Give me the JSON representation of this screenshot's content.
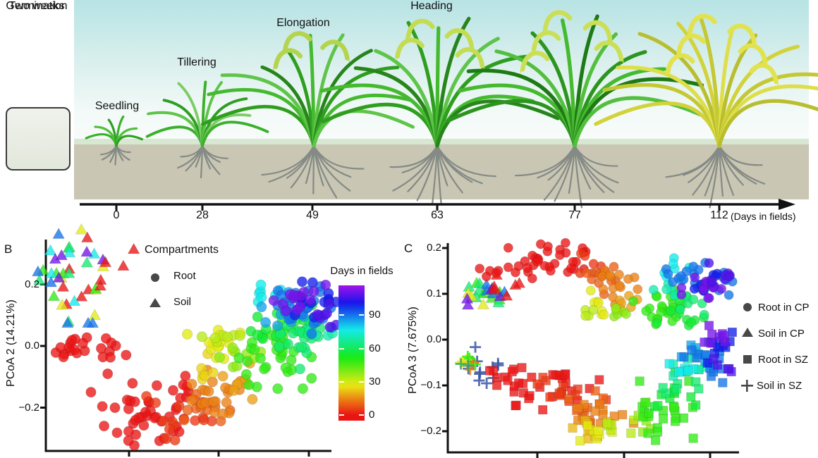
{
  "figure": {
    "panelA": {
      "germination": {
        "label": "Germination",
        "duration": "Two weeks"
      },
      "stages": [
        {
          "label": "Seedling",
          "day": "0"
        },
        {
          "label": "Tillering",
          "day": "28"
        },
        {
          "label": "Elongation",
          "day": "49"
        },
        {
          "label": "Heading",
          "day": "63"
        },
        {
          "label": "",
          "day": "77"
        },
        {
          "label": "",
          "day": "112"
        }
      ],
      "timeline_suffix": "(Days in fields)"
    }
  },
  "chart_data": [
    {
      "panel": "B",
      "type": "scatter",
      "ylabel": "PCoA 2 (14.21%)",
      "yticks": [
        0.2,
        0.0,
        -0.2
      ],
      "grid": false,
      "legend": {
        "title": "Compartments",
        "items": [
          {
            "symbol": "circle",
            "label": "Root"
          },
          {
            "symbol": "triangle",
            "label": "Soil"
          }
        ]
      },
      "colorbar": {
        "title": "Days in fields",
        "ticks": [
          0,
          30,
          60,
          90
        ],
        "range": [
          0,
          112
        ]
      },
      "cluster_format": [
        "shape",
        "day",
        "cx_px",
        "cy_px",
        "sx_px",
        "sy_px",
        "n"
      ],
      "clusters": [
        [
          "triangle",
          0,
          103,
          390,
          24,
          34,
          7
        ],
        [
          "triangle",
          28,
          100,
          385,
          22,
          30,
          6
        ],
        [
          "triangle",
          49,
          106,
          398,
          24,
          32,
          6
        ],
        [
          "triangle",
          63,
          102,
          395,
          22,
          30,
          5
        ],
        [
          "triangle",
          77,
          108,
          388,
          24,
          30,
          5
        ],
        [
          "triangle",
          90,
          100,
          392,
          22,
          32,
          6
        ],
        [
          "triangle",
          112,
          104,
          386,
          20,
          28,
          5
        ],
        [
          "triangle",
          0,
          160,
          388,
          20,
          16,
          4
        ],
        [
          "circle",
          0,
          117,
          489,
          18,
          14,
          15
        ],
        [
          "circle",
          0,
          150,
          500,
          14,
          10,
          7
        ],
        [
          "circle",
          0,
          213,
          583,
          40,
          25,
          45
        ],
        [
          "circle",
          5,
          258,
          596,
          24,
          16,
          14
        ],
        [
          "circle",
          10,
          280,
          575,
          22,
          16,
          12
        ],
        [
          "circle",
          14,
          305,
          563,
          26,
          18,
          20
        ],
        [
          "circle",
          18,
          330,
          543,
          18,
          14,
          8
        ],
        [
          "circle",
          24,
          298,
          523,
          14,
          12,
          6
        ],
        [
          "circle",
          28,
          302,
          495,
          20,
          18,
          14
        ],
        [
          "circle",
          33,
          320,
          470,
          16,
          12,
          7
        ],
        [
          "circle",
          38,
          345,
          505,
          16,
          14,
          8
        ],
        [
          "circle",
          49,
          383,
          497,
          28,
          26,
          38
        ],
        [
          "circle",
          56,
          402,
          465,
          22,
          16,
          16
        ],
        [
          "circle",
          63,
          420,
          490,
          20,
          16,
          12
        ],
        [
          "circle",
          63,
          438,
          478,
          14,
          12,
          8
        ],
        [
          "circle",
          70,
          452,
          468,
          10,
          10,
          6
        ],
        [
          "circle",
          77,
          373,
          417,
          12,
          10,
          7
        ],
        [
          "circle",
          85,
          400,
          440,
          16,
          12,
          10
        ],
        [
          "circle",
          90,
          428,
          440,
          26,
          16,
          28
        ],
        [
          "circle",
          100,
          446,
          425,
          16,
          12,
          12
        ],
        [
          "circle",
          112,
          424,
          424,
          18,
          10,
          14
        ],
        [
          "circle",
          108,
          455,
          450,
          12,
          10,
          8
        ]
      ]
    },
    {
      "panel": "C",
      "type": "scatter",
      "ylabel": "PCoA 3 (7.675%)",
      "yticks": [
        0.2,
        0.1,
        0.0,
        -0.1,
        -0.2
      ],
      "grid": false,
      "legend": {
        "title": "",
        "items": [
          {
            "symbol": "circle",
            "label": "Root in CP"
          },
          {
            "symbol": "triangle",
            "label": "Soil in CP"
          },
          {
            "symbol": "square",
            "label": "Root in SZ"
          },
          {
            "symbol": "plus",
            "label": "Soil in SZ"
          }
        ]
      },
      "cluster_format": [
        "shape",
        "day",
        "cx_px",
        "cy_px",
        "sx_px",
        "sy_px",
        "n"
      ],
      "clusters": [
        [
          "triangle",
          49,
          685,
          420,
          18,
          12,
          6
        ],
        [
          "triangle",
          63,
          690,
          412,
          20,
          12,
          5
        ],
        [
          "triangle",
          28,
          680,
          425,
          16,
          10,
          4
        ],
        [
          "triangle",
          90,
          695,
          415,
          20,
          12,
          5
        ],
        [
          "triangle",
          112,
          688,
          420,
          16,
          10,
          4
        ],
        [
          "triangle",
          0,
          712,
          412,
          16,
          10,
          4
        ],
        [
          "triangle",
          0,
          730,
          418,
          10,
          8,
          2
        ],
        [
          "circle",
          0,
          700,
          392,
          10,
          8,
          5
        ],
        [
          "circle",
          0,
          788,
          372,
          32,
          13,
          28
        ],
        [
          "circle",
          0,
          750,
          385,
          12,
          10,
          6
        ],
        [
          "circle",
          5,
          835,
          380,
          14,
          10,
          8
        ],
        [
          "circle",
          10,
          855,
          395,
          16,
          12,
          10
        ],
        [
          "circle",
          14,
          868,
          408,
          18,
          14,
          14
        ],
        [
          "circle",
          18,
          888,
          428,
          12,
          10,
          6
        ],
        [
          "circle",
          28,
          853,
          430,
          12,
          10,
          7
        ],
        [
          "circle",
          33,
          838,
          448,
          10,
          8,
          4
        ],
        [
          "circle",
          38,
          878,
          442,
          12,
          10,
          6
        ],
        [
          "circle",
          49,
          942,
          437,
          22,
          14,
          22
        ],
        [
          "circle",
          56,
          965,
          448,
          16,
          10,
          10
        ],
        [
          "circle",
          63,
          978,
          432,
          14,
          10,
          8
        ],
        [
          "circle",
          70,
          952,
          415,
          12,
          8,
          5
        ],
        [
          "circle",
          77,
          948,
          382,
          14,
          10,
          7
        ],
        [
          "circle",
          90,
          995,
          398,
          24,
          14,
          24
        ],
        [
          "circle",
          100,
          1012,
          408,
          14,
          10,
          10
        ],
        [
          "circle",
          112,
          1000,
          402,
          16,
          10,
          12
        ],
        [
          "circle",
          108,
          1025,
          392,
          12,
          10,
          8
        ],
        [
          "plus",
          95,
          684,
          522,
          18,
          14,
          11
        ],
        [
          "plus",
          0,
          664,
          512,
          6,
          5,
          3
        ],
        [
          "plus",
          14,
          667,
          515,
          6,
          5,
          3
        ],
        [
          "plus",
          28,
          662,
          509,
          6,
          5,
          3
        ],
        [
          "plus",
          49,
          666,
          511,
          6,
          5,
          3
        ],
        [
          "plus",
          63,
          660,
          514,
          5,
          4,
          2
        ],
        [
          "square",
          0,
          712,
          532,
          14,
          8,
          7
        ],
        [
          "square",
          0,
          770,
          548,
          38,
          16,
          26
        ],
        [
          "square",
          5,
          805,
          565,
          26,
          14,
          14
        ],
        [
          "square",
          10,
          832,
          580,
          20,
          12,
          10
        ],
        [
          "square",
          14,
          856,
          595,
          22,
          13,
          14
        ],
        [
          "square",
          21,
          838,
          610,
          16,
          10,
          8
        ],
        [
          "square",
          28,
          852,
          612,
          14,
          10,
          7
        ],
        [
          "square",
          33,
          878,
          600,
          14,
          10,
          6
        ],
        [
          "square",
          38,
          900,
          592,
          12,
          10,
          5
        ],
        [
          "square",
          49,
          943,
          583,
          24,
          20,
          22
        ],
        [
          "square",
          56,
          958,
          555,
          18,
          14,
          10
        ],
        [
          "square",
          63,
          968,
          540,
          16,
          12,
          8
        ],
        [
          "square",
          70,
          980,
          517,
          12,
          10,
          8
        ],
        [
          "square",
          77,
          962,
          520,
          12,
          10,
          6
        ],
        [
          "square",
          85,
          988,
          498,
          12,
          10,
          6
        ],
        [
          "square",
          90,
          1006,
          512,
          18,
          16,
          16
        ],
        [
          "square",
          100,
          1015,
          490,
          12,
          12,
          8
        ],
        [
          "square",
          112,
          1012,
          478,
          14,
          10,
          8
        ],
        [
          "square",
          108,
          1030,
          520,
          10,
          10,
          5
        ]
      ]
    }
  ],
  "colors": {
    "day_scale_low": "#e31a1c",
    "day_scale_mid": "#44c520",
    "day_scale_high": "#6a30c8",
    "soil": "#c9c6b3",
    "sky_top": "#b7e3e4",
    "grass_band": "#d7e7d1",
    "plant_green": "#3cb02c",
    "plant_ripe": "#d2d23a",
    "roots": "#848a85"
  }
}
